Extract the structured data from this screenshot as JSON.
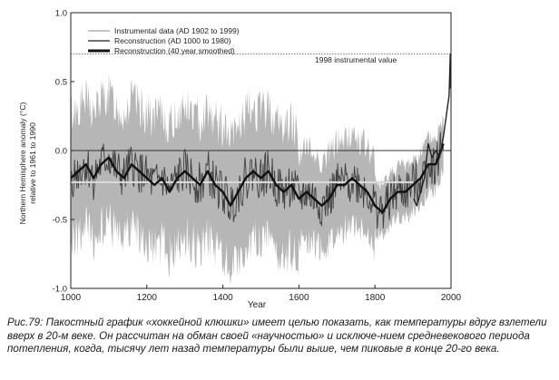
{
  "caption": {
    "label": "Рис.79:",
    "text": "Пакостный график «хоккейной клюшки» имеет целью показать, как температуры вдруг взлетели вверх в 20-м веке. Он рассчитан на обман своей «научностью» и исключе-нием средневекового периода потепления, когда, тысячу лет назад температуры были выше, чем пиковые в конце 20-го века."
  },
  "chart_data": {
    "type": "line",
    "title": "",
    "xlabel": "Year",
    "ylabel": "Northern Hemisphere anomaly (°C) relative to 1961 to 1990",
    "xlim": [
      1000,
      2000
    ],
    "ylim": [
      -1.0,
      1.0
    ],
    "x_ticks": [
      1000,
      1200,
      1400,
      1600,
      1800,
      2000
    ],
    "y_ticks": [
      {
        "value": -1.0,
        "label": "-1.0"
      },
      {
        "value": -0.5,
        "label": "-0.5"
      },
      {
        "value": 0.0,
        "label": "0.0"
      },
      {
        "value": 0.5,
        "label": "0.5"
      },
      {
        "value": 1.0,
        "label": "1.0"
      }
    ],
    "legend_position": "top-left",
    "legend": [
      {
        "label": "Instrumental data (AD 1902 to 1999)",
        "style": "thin",
        "color": "#8a8a8a"
      },
      {
        "label": "Reconstruction (AD 1000 to 1980)",
        "style": "medium",
        "color": "#444444"
      },
      {
        "label": "Reconstruction (40 year smoothed)",
        "style": "thick",
        "color": "#111111"
      }
    ],
    "annotation": {
      "label": "1998 instrumental value",
      "value": 0.7
    },
    "zero_line": 0.0,
    "colors": {
      "uncertainty_band": "#a9a9a9",
      "smoothed": "#111111",
      "instrumental": "#7a7a7a",
      "trend": "#d9d9d9"
    },
    "series": [
      {
        "name": "Reconstruction (40 year smoothed)",
        "x": [
          1000,
          1020,
          1040,
          1060,
          1080,
          1100,
          1120,
          1140,
          1160,
          1180,
          1200,
          1220,
          1240,
          1260,
          1280,
          1300,
          1320,
          1340,
          1360,
          1380,
          1400,
          1420,
          1440,
          1460,
          1480,
          1500,
          1520,
          1540,
          1560,
          1580,
          1600,
          1620,
          1640,
          1660,
          1680,
          1700,
          1720,
          1740,
          1760,
          1780,
          1800,
          1820,
          1840,
          1860,
          1880,
          1900,
          1920,
          1940,
          1960,
          1980
        ],
        "y": [
          -0.2,
          -0.15,
          -0.1,
          -0.2,
          -0.1,
          -0.05,
          -0.15,
          -0.2,
          -0.1,
          -0.15,
          -0.2,
          -0.25,
          -0.2,
          -0.3,
          -0.2,
          -0.15,
          -0.2,
          -0.25,
          -0.15,
          -0.25,
          -0.3,
          -0.4,
          -0.3,
          -0.2,
          -0.15,
          -0.2,
          -0.15,
          -0.25,
          -0.3,
          -0.25,
          -0.35,
          -0.3,
          -0.35,
          -0.4,
          -0.35,
          -0.25,
          -0.25,
          -0.2,
          -0.25,
          -0.3,
          -0.4,
          -0.45,
          -0.35,
          -0.3,
          -0.3,
          -0.25,
          -0.2,
          -0.1,
          -0.1,
          0.05
        ]
      },
      {
        "name": "Instrumental data (AD 1902 to 1999)",
        "x": [
          1902,
          1910,
          1920,
          1930,
          1940,
          1950,
          1960,
          1970,
          1980,
          1990,
          1995,
          1998,
          1999
        ],
        "y": [
          -0.35,
          -0.4,
          -0.3,
          -0.2,
          0.05,
          -0.05,
          0.0,
          -0.05,
          0.1,
          0.3,
          0.4,
          0.7,
          0.45
        ]
      }
    ]
  }
}
